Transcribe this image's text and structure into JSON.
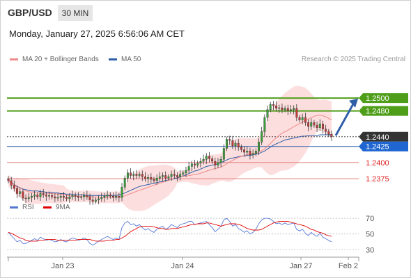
{
  "header": {
    "symbol": "GBP/USD",
    "timeframe": "30 MIN",
    "datetime": "Monday, January 27, 2025 6:56:06 AM CET"
  },
  "legend": {
    "bb_label": "MA 20 + Bollinger Bands",
    "ma50_label": "MA 50",
    "credit": "Research © 2025 Trading Central"
  },
  "colors": {
    "up": "#3aa13a",
    "down": "#c43b3b",
    "bb_fill": "#fbd8d8",
    "ma20": "#f08a8a",
    "ma50": "#2f5ea8",
    "resistance": "#4f9e1a",
    "support": "#e07b7b",
    "rsi": "#5577d6",
    "rsi_ma": "#e00000",
    "arrow": "#2f5ea8",
    "current_tag": "#333333",
    "pivot_tag": "#1f66d1"
  },
  "chart_data": [
    {
      "type": "candlestick",
      "title": "GBP/USD",
      "x_ticks": [
        "Jan 23",
        "Jan 24",
        "Jan 27",
        "Feb 2"
      ],
      "ylim": [
        1.2345,
        1.2555
      ],
      "levels": [
        {
          "value": 1.25,
          "label": "1.2500",
          "kind": "resistance"
        },
        {
          "value": 1.248,
          "label": "1.2480",
          "kind": "resistance"
        },
        {
          "value": 1.244,
          "label": "1.2440",
          "kind": "current"
        },
        {
          "value": 1.2425,
          "label": "1.2425",
          "kind": "pivot"
        },
        {
          "value": 1.24,
          "label": "1.2400",
          "kind": "support"
        },
        {
          "value": 1.2375,
          "label": "1.2375",
          "kind": "support"
        }
      ],
      "close": [
        1.2372,
        1.2365,
        1.236,
        1.2352,
        1.2355,
        1.2345,
        1.2344,
        1.2346,
        1.2348,
        1.235,
        1.2347,
        1.2352,
        1.235,
        1.2348,
        1.2349,
        1.2347,
        1.2345,
        1.2346,
        1.2348,
        1.2346,
        1.2344,
        1.2347,
        1.2349,
        1.2348,
        1.2346,
        1.2347,
        1.2349,
        1.2347,
        1.2342,
        1.234,
        1.2342,
        1.2344,
        1.2346,
        1.2348,
        1.235,
        1.2348,
        1.2346,
        1.2348,
        1.2346,
        1.2362,
        1.2376,
        1.2384,
        1.238,
        1.2382,
        1.238,
        1.2382,
        1.2378,
        1.2375,
        1.2377,
        1.2374,
        1.2372,
        1.2376,
        1.2378,
        1.238,
        1.2376,
        1.2378,
        1.2382,
        1.238,
        1.2378,
        1.2382,
        1.2384,
        1.2388,
        1.2394,
        1.2398,
        1.2396,
        1.2399,
        1.2402,
        1.2405,
        1.241,
        1.2406,
        1.2402,
        1.2396,
        1.24,
        1.2405,
        1.2422,
        1.2436,
        1.2434,
        1.2426,
        1.243,
        1.2424,
        1.242,
        1.2416,
        1.2418,
        1.2412,
        1.2414,
        1.2418,
        1.2432,
        1.2448,
        1.247,
        1.2482,
        1.249,
        1.2488,
        1.2484,
        1.2485,
        1.2482,
        1.2484,
        1.248,
        1.2482,
        1.2484,
        1.247,
        1.2466,
        1.247,
        1.2462,
        1.2456,
        1.2462,
        1.2458,
        1.2454,
        1.246,
        1.2452,
        1.2448,
        1.2444,
        1.244
      ],
      "open_first": 1.2375,
      "ma50": [
        1.2372,
        1.2369,
        1.2366,
        1.2363,
        1.2361,
        1.2359,
        1.2358,
        1.2357,
        1.2356,
        1.2356,
        1.2356,
        1.2355,
        1.2355,
        1.2354,
        1.2354,
        1.2354,
        1.2353,
        1.2353,
        1.2352,
        1.2352,
        1.2351,
        1.2351,
        1.2351,
        1.235,
        1.235,
        1.235,
        1.235,
        1.2349,
        1.2349,
        1.2349,
        1.2349,
        1.2349,
        1.2349,
        1.2349,
        1.2349,
        1.2349,
        1.2349,
        1.2349,
        1.235,
        1.2351,
        1.2353,
        1.2355,
        1.2357,
        1.2359,
        1.2361,
        1.2363,
        1.2364,
        1.2365,
        1.2366,
        1.2367,
        1.2368,
        1.2369,
        1.237,
        1.2371,
        1.2372,
        1.2373,
        1.2374,
        1.2375,
        1.2376,
        1.2378,
        1.2379,
        1.2381,
        1.2383,
        1.2385,
        1.2387,
        1.2388,
        1.239,
        1.2392,
        1.2394,
        1.2395,
        1.2396,
        1.2397,
        1.2398,
        1.24,
        1.2402,
        1.2404,
        1.2406,
        1.2407,
        1.2408,
        1.2409,
        1.241,
        1.241,
        1.2411,
        1.2411,
        1.2412,
        1.2413,
        1.2414,
        1.2416,
        1.2418,
        1.2421,
        1.2424,
        1.2427,
        1.2429,
        1.2431,
        1.2433,
        1.2435,
        1.2436,
        1.2437,
        1.2438,
        1.2439,
        1.244,
        1.2441,
        1.2441,
        1.2442,
        1.2442,
        1.2442,
        1.2442,
        1.2443,
        1.2443,
        1.2443,
        1.2443,
        1.2443
      ]
    },
    {
      "type": "line",
      "title": "RSI",
      "series": [
        {
          "name": "RSI"
        },
        {
          "name": "9MA"
        }
      ],
      "ylim": [
        25,
        78
      ],
      "y_ticks": [
        70,
        50,
        30
      ],
      "rsi": [
        52,
        48,
        44,
        40,
        42,
        38,
        38,
        40,
        42,
        44,
        42,
        46,
        44,
        42,
        43,
        42,
        40,
        41,
        43,
        41,
        40,
        43,
        45,
        44,
        42,
        43,
        45,
        43,
        38,
        36,
        38,
        41,
        43,
        45,
        47,
        45,
        43,
        45,
        43,
        58,
        64,
        66,
        62,
        63,
        60,
        62,
        58,
        55,
        57,
        54,
        52,
        56,
        58,
        60,
        56,
        58,
        62,
        60,
        58,
        62,
        63,
        64,
        66,
        66,
        62,
        63,
        64,
        65,
        66,
        62,
        58,
        53,
        56,
        60,
        68,
        70,
        66,
        60,
        62,
        57,
        55,
        52,
        54,
        50,
        52,
        56,
        63,
        68,
        70,
        70,
        69,
        66,
        63,
        64,
        62,
        64,
        62,
        63,
        64,
        56,
        54,
        56,
        51,
        48,
        52,
        49,
        47,
        51,
        46,
        44,
        42,
        40
      ],
      "rsi_ma": [
        52,
        51,
        49,
        47,
        45,
        44,
        42,
        41,
        41,
        41,
        41,
        42,
        42,
        43,
        43,
        43,
        43,
        42,
        42,
        42,
        42,
        42,
        42,
        42,
        43,
        43,
        43,
        43,
        43,
        42,
        41,
        41,
        41,
        41,
        42,
        42,
        42,
        43,
        43,
        45,
        47,
        50,
        53,
        55,
        57,
        59,
        60,
        60,
        60,
        60,
        59,
        58,
        57,
        57,
        56,
        56,
        57,
        57,
        57,
        58,
        59,
        60,
        61,
        62,
        62,
        63,
        63,
        63,
        64,
        64,
        63,
        62,
        61,
        60,
        61,
        62,
        63,
        63,
        63,
        62,
        61,
        59,
        57,
        56,
        55,
        55,
        55,
        56,
        58,
        60,
        62,
        64,
        65,
        66,
        66,
        66,
        66,
        65,
        64,
        63,
        62,
        61,
        60,
        58,
        56,
        55,
        53,
        52,
        51,
        49,
        48,
        47
      ]
    }
  ]
}
